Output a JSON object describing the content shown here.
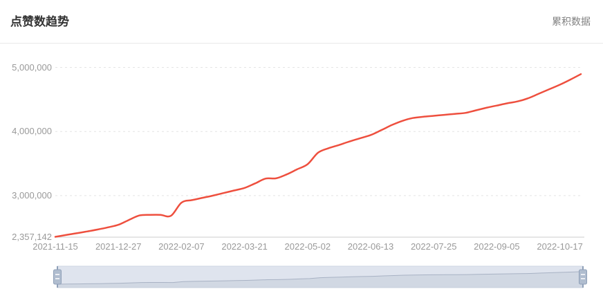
{
  "header": {
    "title": "点赞数趋势",
    "right_label": "累积数据"
  },
  "colors": {
    "line": "#ee4f3e",
    "title_text": "#333333",
    "right_label_text": "#808080",
    "axis_label": "#999999",
    "axis_line": "#cccccc",
    "grid_line": "#e4e4e4",
    "slider_fill": "#dfe4ee",
    "slider_border": "#ccd5e2",
    "slider_shadow_line": "#a8b2c4",
    "slider_shadow_fill": "rgba(150,160,180,0.18)",
    "handle_fill": "#b0bdcf",
    "handle_border": "#8fa0b8"
  },
  "chart_data": {
    "type": "line",
    "title": "点赞数趋势",
    "legend": [
      "累积数据"
    ],
    "legend_position": "top-right",
    "grid": "horizontal-dotted",
    "ylim": [
      2357142,
      5000000
    ],
    "y_ticks": [
      2357142,
      3000000,
      4000000,
      5000000
    ],
    "y_tick_labels": [
      "2,357,142",
      "3,000,000",
      "4,000,000",
      "5,000,000"
    ],
    "x_tick_indices": [
      0,
      6,
      12,
      18,
      24,
      30,
      36,
      42,
      48
    ],
    "x_tick_labels": [
      "2021-11-15",
      "2021-12-27",
      "2022-02-07",
      "2022-03-21",
      "2022-05-02",
      "2022-06-13",
      "2022-07-25",
      "2022-09-05",
      "2022-10-17"
    ],
    "x": [
      "2021-11-15",
      "2021-11-22",
      "2021-11-29",
      "2021-12-06",
      "2021-12-13",
      "2021-12-20",
      "2021-12-27",
      "2022-01-03",
      "2022-01-10",
      "2022-01-17",
      "2022-01-24",
      "2022-01-31",
      "2022-02-07",
      "2022-02-14",
      "2022-02-21",
      "2022-02-28",
      "2022-03-07",
      "2022-03-14",
      "2022-03-21",
      "2022-03-28",
      "2022-04-04",
      "2022-04-11",
      "2022-04-18",
      "2022-04-25",
      "2022-05-02",
      "2022-05-09",
      "2022-05-16",
      "2022-05-23",
      "2022-05-30",
      "2022-06-06",
      "2022-06-13",
      "2022-06-20",
      "2022-06-27",
      "2022-07-04",
      "2022-07-11",
      "2022-07-18",
      "2022-07-25",
      "2022-08-01",
      "2022-08-08",
      "2022-08-15",
      "2022-08-22",
      "2022-08-29",
      "2022-09-05",
      "2022-09-12",
      "2022-09-19",
      "2022-09-26",
      "2022-10-03",
      "2022-10-10",
      "2022-10-17",
      "2022-10-24",
      "2022-10-31"
    ],
    "series": [
      {
        "name": "累积数据",
        "values": [
          2357142,
          2385000,
          2412000,
          2440000,
          2470000,
          2505000,
          2545000,
          2620000,
          2690000,
          2700000,
          2700000,
          2685000,
          2890000,
          2930000,
          2965000,
          3000000,
          3040000,
          3080000,
          3120000,
          3190000,
          3265000,
          3270000,
          3330000,
          3410000,
          3490000,
          3670000,
          3740000,
          3790000,
          3845000,
          3895000,
          3945000,
          4020000,
          4100000,
          4165000,
          4210000,
          4230000,
          4245000,
          4260000,
          4275000,
          4290000,
          4330000,
          4370000,
          4405000,
          4440000,
          4470000,
          4520000,
          4590000,
          4660000,
          4730000,
          4810000,
          4895000
        ]
      }
    ],
    "datazoom_slider": {
      "present": true,
      "range_start_percent": 0,
      "range_end_percent": 100
    }
  }
}
